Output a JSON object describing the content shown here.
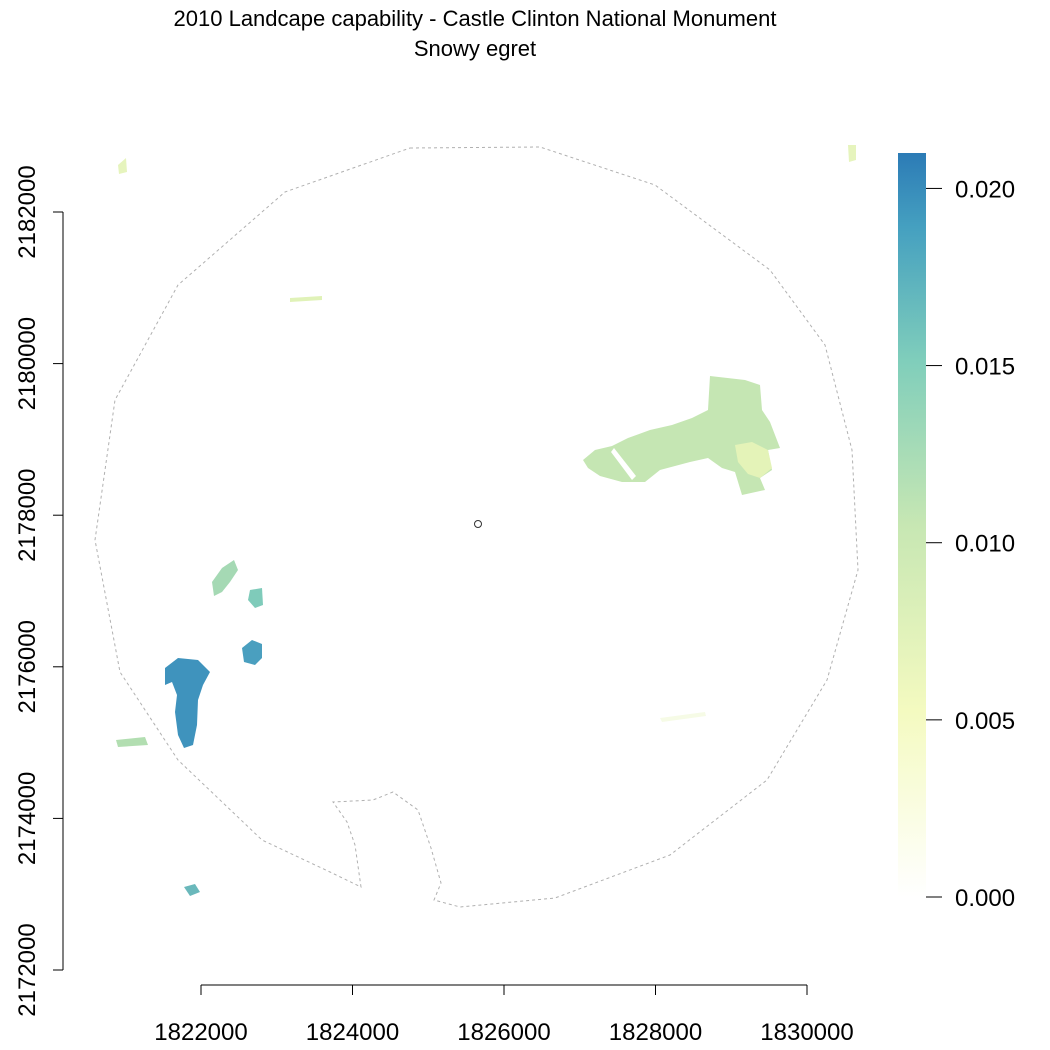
{
  "title": {
    "line1": "2010 Landcape capability - Castle Clinton National Monument",
    "line2": "Snowy egret"
  },
  "chart_data": {
    "type": "heatmap",
    "title": "2010 Landcape capability - Castle Clinton National Monument",
    "subtitle": "Snowy egret",
    "xlabel": "",
    "ylabel": "",
    "x_ticks": [
      1822000,
      1824000,
      1826000,
      1828000,
      1830000
    ],
    "y_ticks": [
      2172000,
      2174000,
      2176000,
      2178000,
      2180000,
      2182000
    ],
    "x_tick_labels": [
      "1822000",
      "1824000",
      "1826000",
      "1828000",
      "1830000"
    ],
    "y_tick_labels": [
      "2172000",
      "2174000",
      "2176000",
      "2178000",
      "2180000",
      "2182000"
    ],
    "xlim": [
      1822000,
      1830000
    ],
    "ylim": [
      2172000,
      2182000
    ],
    "legend": {
      "position": "right",
      "range": [
        0.0,
        0.021
      ],
      "ticks": [
        0.0,
        0.005,
        0.01,
        0.015,
        0.02
      ],
      "tick_labels": [
        "0.000",
        "0.005",
        "0.010",
        "0.015",
        "0.020"
      ],
      "colors": [
        "#ffffff",
        "#f0f8c8",
        "#c3e6b4",
        "#7cccbc",
        "#3d8fbf",
        "#2c7bb6"
      ]
    },
    "grid": false,
    "features": [
      {
        "name": "east-wetland",
        "value": 0.011
      },
      {
        "name": "east-wetland-tip",
        "value": 0.008
      },
      {
        "name": "west-pond-large",
        "value": 0.019
      },
      {
        "name": "west-pond-small",
        "value": 0.017
      },
      {
        "name": "west-cluster",
        "value": 0.013
      },
      {
        "name": "west-edge-strip",
        "value": 0.011
      },
      {
        "name": "south-west-spot",
        "value": 0.016
      },
      {
        "name": "north-strip",
        "value": 0.008
      },
      {
        "name": "north-west-spot",
        "value": 0.009
      },
      {
        "name": "north-east-spot",
        "value": 0.009
      },
      {
        "name": "south-east-traces",
        "value": 0.003
      }
    ],
    "study_area_boundary": "dashed-grey-polygon",
    "site_marker": "small-black-circle"
  }
}
